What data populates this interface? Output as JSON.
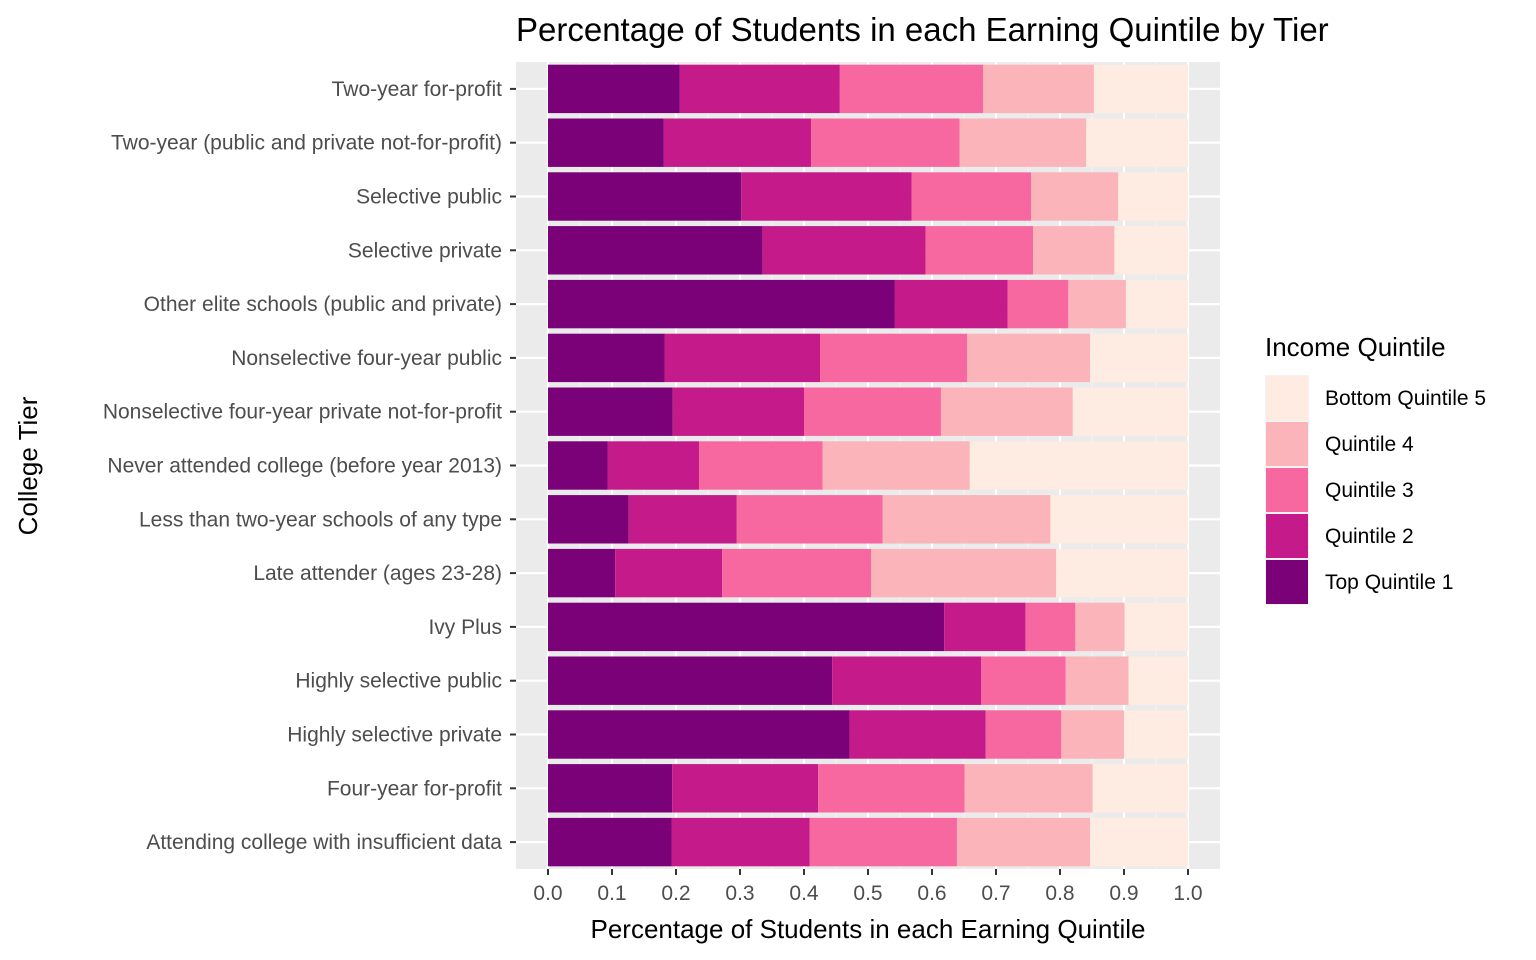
{
  "chart_data": {
    "type": "bar",
    "orientation": "horizontal",
    "stacked": true,
    "title": "Percentage of Students in each Earning Quintile by Tier",
    "xlabel": "Percentage of Students in each Earning Quintile",
    "ylabel": "College Tier",
    "xlim": [
      0,
      1
    ],
    "xticks": [
      "0.0",
      "0.1",
      "0.2",
      "0.3",
      "0.4",
      "0.5",
      "0.6",
      "0.7",
      "0.8",
      "0.9",
      "1.0"
    ],
    "grid": true,
    "legend_title": "Income Quintile",
    "legend_position": "right",
    "legend_order": [
      "Bottom Quintile 5",
      "Quintile 4",
      "Quintile 3",
      "Quintile 2",
      "Top Quintile 1"
    ],
    "categories": [
      "Two-year for-profit",
      "Two-year (public and private not-for-profit)",
      "Selective public",
      "Selective private",
      "Other elite schools (public and private)",
      "Nonselective four-year public",
      "Nonselective four-year private not-for-profit",
      "Never attended college (before year 2013)",
      "Less than two-year schools of any type",
      "Late attender (ages 23-28)",
      "Ivy Plus",
      "Highly selective public",
      "Highly selective private",
      "Four-year for-profit",
      "Attending college with insufficient data"
    ],
    "series": [
      {
        "name": "Top Quintile 1",
        "color": "#7a0177",
        "values": [
          0.206,
          0.181,
          0.302,
          0.335,
          0.542,
          0.182,
          0.195,
          0.093,
          0.126,
          0.105,
          0.619,
          0.444,
          0.471,
          0.194,
          0.193
        ]
      },
      {
        "name": "Quintile 2",
        "color": "#c51b8a",
        "values": [
          0.25,
          0.23,
          0.266,
          0.255,
          0.176,
          0.243,
          0.205,
          0.143,
          0.169,
          0.167,
          0.127,
          0.233,
          0.213,
          0.228,
          0.216
        ]
      },
      {
        "name": "Quintile 3",
        "color": "#f768a1",
        "values": [
          0.224,
          0.232,
          0.187,
          0.168,
          0.095,
          0.23,
          0.214,
          0.193,
          0.228,
          0.233,
          0.078,
          0.132,
          0.118,
          0.229,
          0.23
        ]
      },
      {
        "name": "Quintile 4",
        "color": "#fbb4b9",
        "values": [
          0.173,
          0.198,
          0.136,
          0.127,
          0.09,
          0.192,
          0.206,
          0.23,
          0.262,
          0.289,
          0.077,
          0.098,
          0.098,
          0.2,
          0.208
        ]
      },
      {
        "name": "Bottom Quintile 5",
        "color": "#feebe2",
        "values": [
          0.147,
          0.159,
          0.109,
          0.115,
          0.097,
          0.153,
          0.18,
          0.341,
          0.215,
          0.206,
          0.099,
          0.093,
          0.1,
          0.149,
          0.153
        ]
      }
    ]
  }
}
